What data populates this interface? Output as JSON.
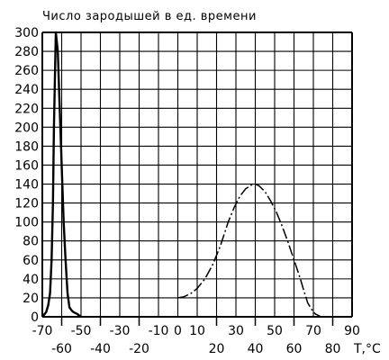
{
  "chart_data": {
    "type": "line",
    "title": "Число зародышей в ед. времени",
    "xlabel": "T,°C",
    "xlim": [
      -70,
      90
    ],
    "ylim": [
      0,
      300
    ],
    "grid": true,
    "y_ticks": [
      "0",
      "20",
      "40",
      "60",
      "80",
      "100",
      "120",
      "140",
      "160",
      "180",
      "200",
      "220",
      "240",
      "260",
      "280",
      "300"
    ],
    "x_ticks_upper": [
      "-70",
      "-50",
      "-30",
      "-10",
      "0",
      "10",
      "30",
      "50",
      "70",
      "90"
    ],
    "x_ticks_lower": [
      "-60",
      "-40",
      "-20",
      "20",
      "40",
      "60",
      "80"
    ],
    "series": [
      {
        "style": "solid",
        "x": [
          -70,
          -68,
          -67,
          -66,
          -65.2,
          -64.5,
          -64,
          -63,
          -62,
          -61,
          -60,
          -59,
          -58,
          -57,
          -56,
          -55,
          -54,
          -52,
          -50
        ],
        "y": [
          0,
          5,
          12,
          25,
          60,
          120,
          200,
          300,
          280,
          220,
          160,
          100,
          60,
          25,
          10,
          7,
          5,
          3,
          0
        ]
      },
      {
        "style": "dash-dot",
        "x": [
          0,
          3,
          7,
          10,
          14,
          18,
          22,
          26,
          29,
          32,
          35,
          38,
          40,
          42,
          45,
          48,
          51,
          54,
          57,
          60,
          63,
          65,
          67,
          69,
          71,
          74,
          77
        ],
        "y": [
          20,
          21,
          25,
          30,
          40,
          55,
          75,
          100,
          115,
          127,
          135,
          139,
          140,
          138,
          132,
          122,
          110,
          95,
          78,
          60,
          42,
          28,
          15,
          8,
          3,
          0,
          0
        ]
      }
    ]
  }
}
